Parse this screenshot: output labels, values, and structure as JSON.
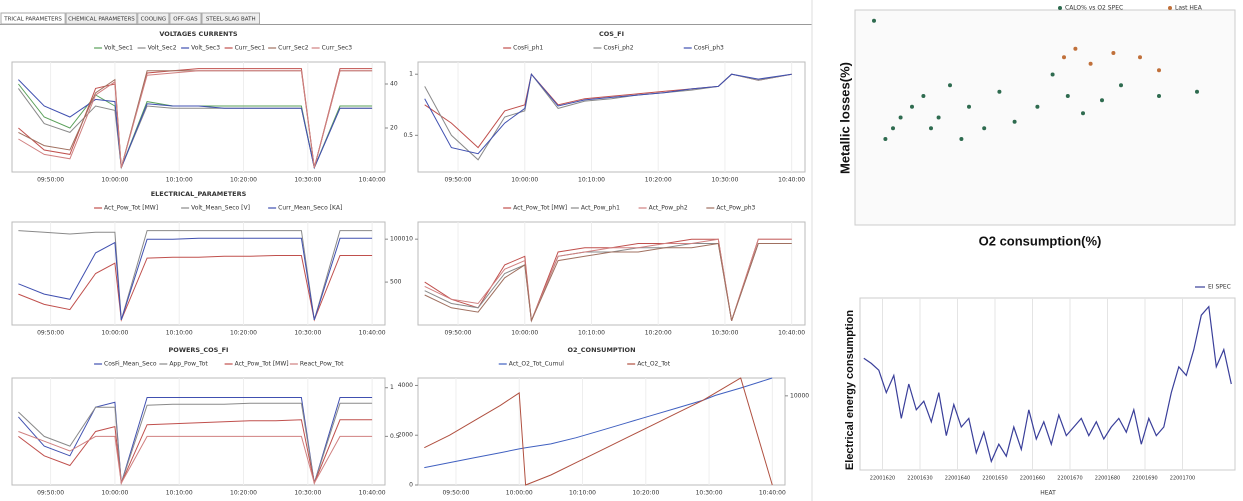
{
  "tabs": [
    "TRICAL PARAMETERS",
    "CHEMICAL PARAMETERS",
    "COOLING",
    "OFF-GAS",
    "STEEL-SLAG BATH"
  ],
  "panels": [
    {
      "title": "VOLTAGES CURRENTS",
      "x": [
        45,
        49,
        53,
        57,
        60,
        61,
        65,
        69,
        73,
        77,
        81,
        85,
        89,
        91,
        95,
        100
      ],
      "xlim": [
        44,
        102
      ],
      "xticks": [
        {
          "value": 50,
          "label": "09:50:00"
        },
        {
          "value": 60,
          "label": "10:00:00"
        },
        {
          "value": 70,
          "label": "10:10:00"
        },
        {
          "value": 80,
          "label": "10:20:00"
        },
        {
          "value": 90,
          "label": "10:30:00"
        },
        {
          "value": 100,
          "label": "10:40:00"
        }
      ],
      "ylim": [
        0,
        50
      ],
      "yticks": [
        20,
        40
      ],
      "series": [
        {
          "name": "Volt_Sec1",
          "color": "#5aa05a",
          "values": [
            40,
            25,
            20,
            35,
            30,
            2,
            32,
            30,
            30,
            30,
            30,
            30,
            30,
            2,
            30,
            30
          ]
        },
        {
          "name": "Volt_Sec2",
          "color": "#8a8a8a",
          "values": [
            38,
            22,
            18,
            30,
            28,
            2,
            30,
            29,
            29,
            29,
            29,
            29,
            29,
            2,
            29,
            29
          ]
        },
        {
          "name": "Volt_Sec3",
          "color": "#4050b0",
          "values": [
            42,
            30,
            25,
            33,
            32,
            2,
            31,
            30,
            30,
            29,
            29,
            29,
            29,
            2,
            29,
            29
          ]
        },
        {
          "name": "Curr_Sec1",
          "color": "#c0504d",
          "values": [
            20,
            10,
            8,
            38,
            40,
            2,
            45,
            46,
            47,
            47,
            47,
            47,
            47,
            2,
            47,
            47
          ]
        },
        {
          "name": "Curr_Sec2",
          "color": "#a07060",
          "values": [
            18,
            12,
            10,
            36,
            42,
            2,
            46,
            46,
            46,
            46,
            46,
            46,
            46,
            2,
            46,
            46
          ]
        },
        {
          "name": "Curr_Sec3",
          "color": "#d08080",
          "values": [
            15,
            8,
            6,
            35,
            41,
            2,
            44,
            45,
            46,
            46,
            46,
            46,
            46,
            2,
            46,
            46
          ]
        }
      ]
    },
    {
      "title": "COS_FI",
      "x": [
        45,
        49,
        53,
        57,
        60,
        61,
        65,
        69,
        73,
        77,
        81,
        85,
        89,
        91,
        95,
        100
      ],
      "xlim": [
        44,
        102
      ],
      "xticks": [
        {
          "value": 50,
          "label": "09:50:00"
        },
        {
          "value": 60,
          "label": "10:00:00"
        },
        {
          "value": 70,
          "label": "10:10:00"
        },
        {
          "value": 80,
          "label": "10:20:00"
        },
        {
          "value": 90,
          "label": "10:30:00"
        },
        {
          "value": 100,
          "label": "10:40:00"
        }
      ],
      "ylim": [
        0.2,
        1.1
      ],
      "yticks": [
        0.5,
        1
      ],
      "series": [
        {
          "name": "CosFi_ph1",
          "color": "#c0504d",
          "values": [
            0.75,
            0.6,
            0.4,
            0.7,
            0.75,
            1,
            0.75,
            0.8,
            0.82,
            0.84,
            0.86,
            0.88,
            0.9,
            1,
            0.95,
            1
          ]
        },
        {
          "name": "CosFi_ph2",
          "color": "#8a8a8a",
          "values": [
            0.9,
            0.5,
            0.3,
            0.65,
            0.7,
            1,
            0.72,
            0.78,
            0.8,
            0.83,
            0.85,
            0.87,
            0.9,
            1,
            0.95,
            1
          ]
        },
        {
          "name": "CosFi_ph3",
          "color": "#4050b0",
          "values": [
            0.8,
            0.4,
            0.35,
            0.6,
            0.72,
            1,
            0.74,
            0.79,
            0.81,
            0.83,
            0.85,
            0.88,
            0.9,
            1,
            0.96,
            1
          ]
        }
      ]
    },
    {
      "title": "ELECTRICAL_PARAMETERS",
      "x": [
        45,
        49,
        53,
        57,
        60,
        61,
        65,
        69,
        73,
        77,
        81,
        85,
        89,
        91,
        95,
        100
      ],
      "xlim": [
        44,
        102
      ],
      "xticks": [
        {
          "value": 50,
          "label": "09:50:00"
        },
        {
          "value": 60,
          "label": "10:00:00"
        },
        {
          "value": 70,
          "label": "10:10:00"
        },
        {
          "value": 80,
          "label": "10:20:00"
        },
        {
          "value": 90,
          "label": "10:30:00"
        },
        {
          "value": 100,
          "label": "10:40:00"
        }
      ],
      "ylim": [
        0,
        1200
      ],
      "yticks": [
        500,
        1000
      ],
      "series": [
        {
          "name": "Act_Pow_Tot [MW]",
          "color": "#c0504d",
          "values": [
            360,
            240,
            180,
            600,
            720,
            60,
            780,
            790,
            790,
            800,
            800,
            810,
            810,
            60,
            810,
            810
          ]
        },
        {
          "name": "Volt_Mean_Seco [V]",
          "color": "#8a8a8a",
          "values": [
            1100,
            1080,
            1060,
            1080,
            1080,
            60,
            1100,
            1100,
            1100,
            1100,
            1100,
            1100,
            1100,
            60,
            1100,
            1100
          ]
        },
        {
          "name": "Curr_Mean_Seco [KA]",
          "color": "#4050b0",
          "values": [
            480,
            360,
            300,
            840,
            960,
            60,
            1000,
            1000,
            1010,
            1010,
            1010,
            1010,
            1010,
            60,
            1010,
            1010
          ]
        }
      ]
    },
    {
      "x": [
        45,
        49,
        53,
        57,
        60,
        61,
        65,
        69,
        73,
        77,
        81,
        85,
        89,
        91,
        95,
        100
      ],
      "xlim": [
        44,
        102
      ],
      "xticks": [
        {
          "value": 50,
          "label": "09:50:00"
        },
        {
          "value": 60,
          "label": "10:00:00"
        },
        {
          "value": 70,
          "label": "10:10:00"
        },
        {
          "value": 80,
          "label": "10:20:00"
        },
        {
          "value": 90,
          "label": "10:30:00"
        },
        {
          "value": 100,
          "label": "10:40:00"
        }
      ],
      "ylim": [
        0,
        12
      ],
      "yticks": [
        10
      ],
      "series": [
        {
          "name": "Act_Pow_Tot [MW]",
          "color": "#c0504d",
          "values": [
            5,
            3,
            2,
            7,
            8,
            0.5,
            8.5,
            9,
            9,
            9.5,
            9.5,
            10,
            10,
            0.5,
            10,
            10
          ]
        },
        {
          "name": "Act_Pow_ph1",
          "color": "#8a8a8a",
          "values": [
            4,
            2.5,
            2,
            6,
            7,
            0.5,
            8,
            8.5,
            8.5,
            9,
            9,
            9.5,
            9.5,
            0.5,
            9.5,
            9.5
          ]
        },
        {
          "name": "Act_Pow_ph2",
          "color": "#d08080",
          "values": [
            4.5,
            3,
            2.5,
            6.5,
            7.5,
            0.5,
            8,
            8.5,
            9,
            9,
            9.5,
            9.5,
            10,
            0.5,
            10,
            10
          ]
        },
        {
          "name": "Act_Pow_ph3",
          "color": "#a07060",
          "values": [
            3.5,
            2,
            1.5,
            5.5,
            7,
            0.5,
            7.5,
            8,
            8.5,
            8.5,
            9,
            9,
            9.5,
            0.5,
            9.5,
            9.5
          ]
        }
      ]
    },
    {
      "title": "POWERS_COS_FI",
      "x": [
        45,
        49,
        53,
        57,
        60,
        61,
        65,
        69,
        73,
        77,
        81,
        85,
        89,
        91,
        95,
        100
      ],
      "xlim": [
        44,
        102
      ],
      "xticks": [
        {
          "value": 50,
          "label": "09:50:00"
        },
        {
          "value": 60,
          "label": "10:00:00"
        },
        {
          "value": 70,
          "label": "10:10:00"
        },
        {
          "value": 80,
          "label": "10:20:00"
        },
        {
          "value": 90,
          "label": "10:30:00"
        },
        {
          "value": 100,
          "label": "10:40:00"
        }
      ],
      "ylim": [
        0,
        1.1
      ],
      "yticks": [
        0.5,
        1
      ],
      "series": [
        {
          "name": "CosFi_Mean_Seco",
          "color": "#4050b0",
          "values": [
            0.7,
            0.4,
            0.3,
            0.8,
            0.85,
            0.02,
            0.9,
            0.9,
            0.9,
            0.9,
            0.9,
            0.9,
            0.9,
            0.02,
            0.9,
            0.9
          ]
        },
        {
          "name": "App_Pow_Tot",
          "color": "#8a8a8a",
          "values": [
            0.75,
            0.5,
            0.4,
            0.8,
            0.8,
            0.02,
            0.82,
            0.83,
            0.83,
            0.83,
            0.84,
            0.84,
            0.84,
            0.02,
            0.84,
            0.84
          ]
        },
        {
          "name": "Act_Pow_Tot [MW]",
          "color": "#c0504d",
          "values": [
            0.5,
            0.3,
            0.2,
            0.55,
            0.6,
            0.02,
            0.62,
            0.63,
            0.64,
            0.65,
            0.66,
            0.66,
            0.67,
            0.02,
            0.67,
            0.67
          ]
        },
        {
          "name": "React_Pow_Tot",
          "color": "#d08080",
          "values": [
            0.55,
            0.45,
            0.35,
            0.5,
            0.5,
            0.02,
            0.5,
            0.5,
            0.5,
            0.5,
            0.5,
            0.5,
            0.5,
            0.02,
            0.5,
            0.5
          ]
        }
      ]
    },
    {
      "title": "O2_CONSUMPTION",
      "x": [
        45,
        49,
        53,
        57,
        60,
        61,
        65,
        69,
        73,
        77,
        81,
        85,
        89,
        91,
        95,
        100
      ],
      "xlim": [
        44,
        102
      ],
      "xticks": [
        {
          "value": 50,
          "label": "09:50:00"
        },
        {
          "value": 60,
          "label": "10:00:00"
        },
        {
          "value": 70,
          "label": "10:10:00"
        },
        {
          "value": 80,
          "label": "10:20:00"
        },
        {
          "value": 90,
          "label": "10:30:00"
        },
        {
          "value": 100,
          "label": "10:40:00"
        }
      ],
      "ylim": [
        0,
        4300
      ],
      "yticks": [
        0,
        2000,
        4000
      ],
      "y2lim": [
        0,
        12000
      ],
      "y2ticks": [
        10000
      ],
      "series": [
        {
          "name": "Act_O2_Tot_Cumul",
          "color": "#4060c0",
          "values": [
            700,
            900,
            1100,
            1300,
            1450,
            1500,
            1650,
            1900,
            2200,
            2500,
            2800,
            3100,
            3400,
            3600,
            3900,
            4300
          ]
        },
        {
          "name": "Act_O2_Tot",
          "color": "#b05040",
          "values": [
            1500,
            2000,
            2600,
            3200,
            3700,
            0,
            400,
            900,
            1400,
            1900,
            2400,
            2900,
            3400,
            3700,
            4300,
            0
          ]
        }
      ]
    }
  ],
  "scatter": {
    "x_label": "O2 consumption(%)",
    "y_label": "Metallic losses(%)",
    "xlim": [
      0,
      100
    ],
    "ylim": [
      0,
      100
    ],
    "series": [
      {
        "name": "CALO% vs O2 SPEC",
        "color": "#2e6b4f",
        "x": [
          5,
          8,
          10,
          12,
          15,
          18,
          20,
          22,
          25,
          28,
          30,
          34,
          38,
          42,
          48,
          52,
          56,
          60,
          65,
          70,
          80,
          90
        ],
        "y": [
          95,
          40,
          45,
          50,
          55,
          60,
          45,
          50,
          65,
          40,
          55,
          45,
          62,
          48,
          55,
          70,
          60,
          52,
          58,
          65,
          60,
          62
        ]
      },
      {
        "name": "Last HEA",
        "color": "#c0703a",
        "x": [
          55,
          58,
          62,
          68,
          75,
          80
        ],
        "y": [
          78,
          82,
          75,
          80,
          78,
          72
        ]
      }
    ]
  },
  "energy": {
    "legend": "EI SPEC",
    "color": "#3a3f9a",
    "x_label": "HEAT",
    "y_label": "Electrical energy consumption",
    "xlim": [
      22001614,
      22001714
    ],
    "ylim": [
      0,
      100
    ],
    "xticks": [
      22001620,
      22001630,
      22001640,
      22001650,
      22001660,
      22001670,
      22001680,
      22001690,
      22001700
    ],
    "x": [
      22001615,
      22001617,
      22001619,
      22001621,
      22001623,
      22001625,
      22001627,
      22001629,
      22001631,
      22001633,
      22001635,
      22001637,
      22001639,
      22001641,
      22001643,
      22001645,
      22001647,
      22001649,
      22001651,
      22001653,
      22001655,
      22001657,
      22001659,
      22001661,
      22001663,
      22001665,
      22001667,
      22001669,
      22001671,
      22001673,
      22001675,
      22001677,
      22001679,
      22001681,
      22001683,
      22001685,
      22001687,
      22001689,
      22001691,
      22001693,
      22001695,
      22001697,
      22001699,
      22001701,
      22001703,
      22001705,
      22001707,
      22001709,
      22001711,
      22001713
    ],
    "values": [
      65,
      62,
      58,
      45,
      55,
      30,
      50,
      35,
      40,
      28,
      45,
      20,
      38,
      25,
      30,
      10,
      22,
      5,
      15,
      8,
      25,
      12,
      35,
      18,
      28,
      15,
      32,
      20,
      25,
      30,
      20,
      28,
      18,
      25,
      30,
      22,
      35,
      15,
      30,
      20,
      25,
      45,
      60,
      55,
      70,
      90,
      95,
      60,
      70,
      50
    ]
  }
}
